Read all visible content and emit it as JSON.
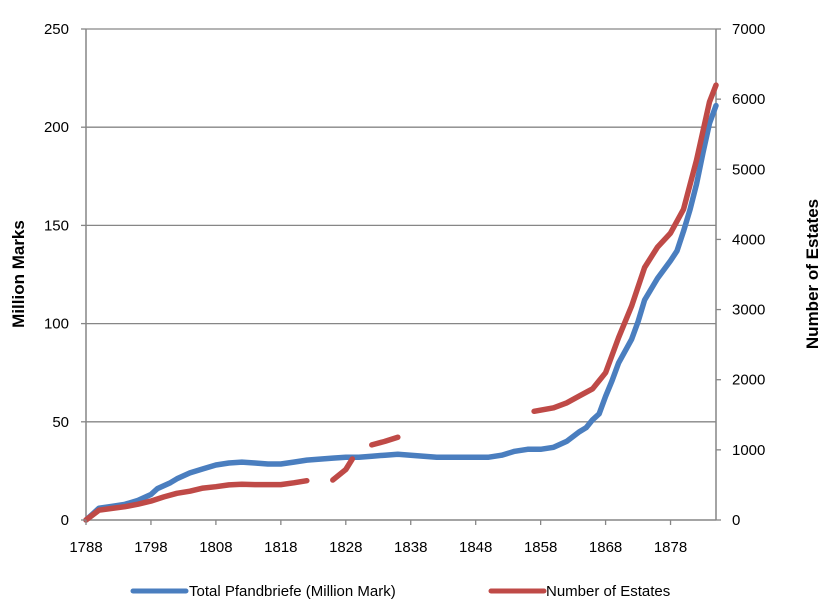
{
  "chart_data": {
    "type": "line",
    "xlim": [
      1788,
      1885
    ],
    "x_ticks": [
      "1788",
      "1798",
      "1808",
      "1818",
      "1828",
      "1838",
      "1848",
      "1858",
      "1868",
      "1878"
    ],
    "y_left": {
      "label": "Million Marks",
      "ylim": [
        0,
        250
      ],
      "ticks": [
        "0",
        "50",
        "100",
        "150",
        "200",
        "250"
      ]
    },
    "y_right": {
      "label": "Number of Estates",
      "ylim": [
        0,
        7000
      ],
      "ticks": [
        "0",
        "1000",
        "2000",
        "3000",
        "4000",
        "5000",
        "6000",
        "7000"
      ]
    },
    "grid": "horizontal",
    "legend_position": "bottom",
    "series": [
      {
        "name": "Total Pfandbriefe (Million Mark)",
        "axis": "left",
        "color": "#4a7ebf",
        "segments": [
          [
            [
              1788,
              0
            ],
            [
              1789,
              3
            ],
            [
              1790,
              6
            ],
            [
              1792,
              7
            ],
            [
              1794,
              8
            ],
            [
              1796,
              10
            ],
            [
              1798,
              13
            ],
            [
              1799,
              16
            ],
            [
              1801,
              19
            ],
            [
              1802,
              21
            ],
            [
              1804,
              24
            ],
            [
              1806,
              26
            ],
            [
              1808,
              28
            ],
            [
              1810,
              29
            ],
            [
              1812,
              29.5
            ],
            [
              1814,
              29
            ],
            [
              1816,
              28.5
            ],
            [
              1818,
              28.5
            ],
            [
              1820,
              29.5
            ],
            [
              1822,
              30.5
            ],
            [
              1824,
              31
            ],
            [
              1826,
              31.5
            ],
            [
              1828,
              32
            ],
            [
              1830,
              32
            ],
            [
              1832,
              32.5
            ],
            [
              1834,
              33
            ],
            [
              1836,
              33.5
            ],
            [
              1838,
              33
            ],
            [
              1840,
              32.5
            ],
            [
              1842,
              32
            ],
            [
              1844,
              32
            ],
            [
              1846,
              32
            ],
            [
              1848,
              32
            ],
            [
              1850,
              32
            ],
            [
              1852,
              33
            ],
            [
              1854,
              35
            ],
            [
              1856,
              36
            ],
            [
              1858,
              36
            ],
            [
              1860,
              37
            ],
            [
              1862,
              40
            ],
            [
              1864,
              45
            ],
            [
              1865,
              47
            ],
            [
              1866,
              51
            ],
            [
              1867,
              54
            ],
            [
              1868,
              63
            ],
            [
              1869,
              71
            ],
            [
              1870,
              80
            ],
            [
              1872,
              92
            ],
            [
              1873,
              101
            ],
            [
              1874,
              112
            ],
            [
              1876,
              123
            ],
            [
              1878,
              132
            ],
            [
              1879,
              137
            ],
            [
              1880,
              147
            ],
            [
              1881,
              158
            ],
            [
              1882,
              171
            ],
            [
              1883,
              187
            ],
            [
              1884,
              202
            ],
            [
              1885,
              211
            ]
          ]
        ]
      },
      {
        "name": "Number of Estates",
        "axis": "right",
        "color": "#bf4a47",
        "segments": [
          [
            [
              1788,
              0
            ],
            [
              1790,
              140
            ],
            [
              1792,
              165
            ],
            [
              1794,
              190
            ],
            [
              1796,
              225
            ],
            [
              1798,
              270
            ],
            [
              1800,
              330
            ],
            [
              1802,
              380
            ],
            [
              1804,
              410
            ],
            [
              1806,
              455
            ],
            [
              1808,
              475
            ],
            [
              1810,
              500
            ],
            [
              1812,
              510
            ],
            [
              1814,
              505
            ],
            [
              1816,
              505
            ],
            [
              1818,
              505
            ],
            [
              1820,
              530
            ],
            [
              1822,
              560
            ]
          ],
          [
            [
              1826,
              570
            ],
            [
              1828,
              720
            ],
            [
              1829,
              870
            ]
          ],
          [
            [
              1832,
              1070
            ],
            [
              1834,
              1120
            ],
            [
              1836,
              1180
            ]
          ],
          [
            [
              1857,
              1550
            ],
            [
              1860,
              1600
            ],
            [
              1862,
              1670
            ],
            [
              1864,
              1770
            ],
            [
              1866,
              1870
            ],
            [
              1868,
              2100
            ],
            [
              1870,
              2600
            ],
            [
              1872,
              3050
            ],
            [
              1874,
              3600
            ],
            [
              1876,
              3890
            ],
            [
              1878,
              4090
            ],
            [
              1880,
              4430
            ],
            [
              1882,
              5130
            ],
            [
              1884,
              5960
            ],
            [
              1885,
              6200
            ]
          ]
        ]
      }
    ]
  }
}
